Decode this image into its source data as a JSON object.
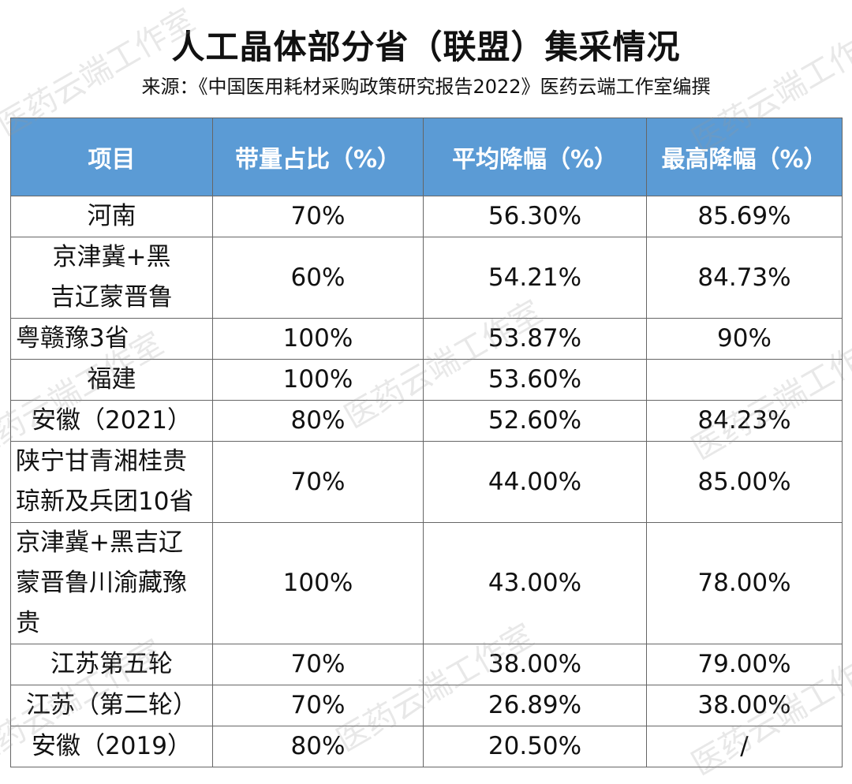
{
  "title": "人工晶体部分省（联盟）集采情况",
  "source": "来源：《中国医用耗材采购政策研究报告2022》医药云端工作室编撰",
  "watermark": "医药云端工作室",
  "table": {
    "headers": [
      "项目",
      "带量占比（%）",
      "平均降幅（%）",
      "最高降幅（%）"
    ],
    "rows": [
      {
        "item": "河南",
        "share": "70%",
        "avg": "56.30%",
        "max": "85.69%"
      },
      {
        "item": "京津冀+黑\n吉辽蒙晋鲁",
        "share": "60%",
        "avg": "54.21%",
        "max": "84.73%"
      },
      {
        "item": "粤赣豫3省",
        "share": "100%",
        "avg": "53.87%",
        "max": "90%"
      },
      {
        "item": "福建",
        "share": "100%",
        "avg": "53.60%",
        "max": ""
      },
      {
        "item": "安徽（2021）",
        "share": "80%",
        "avg": "52.60%",
        "max": "84.23%"
      },
      {
        "item": "陕宁甘青湘桂贵\n琼新及兵团10省",
        "share": "70%",
        "avg": "44.00%",
        "max": "85.00%"
      },
      {
        "item": "京津冀+黑吉辽\n蒙晋鲁川渝藏豫\n贵",
        "share": "100%",
        "avg": "43.00%",
        "max": "78.00%"
      },
      {
        "item": "江苏第五轮",
        "share": "70%",
        "avg": "38.00%",
        "max": "79.00%"
      },
      {
        "item": "江苏（第二轮）",
        "share": "70%",
        "avg": "26.89%",
        "max": "38.00%"
      },
      {
        "item": "安徽（2019）",
        "share": "80%",
        "avg": "20.50%",
        "max": "/"
      }
    ]
  }
}
